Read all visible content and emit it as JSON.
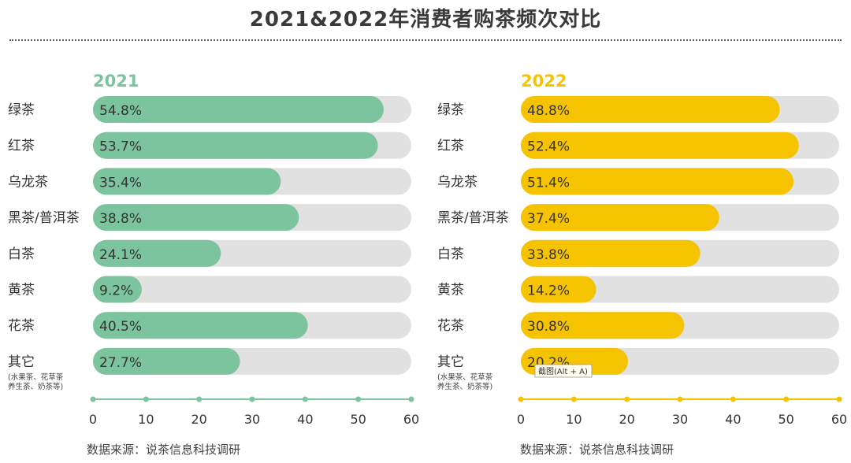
{
  "title": "2021&2022年消费者购茶频次对比",
  "source_text": "数据来源：说茶信息科技调研",
  "tooltip": "截图(Alt + A)",
  "colors": {
    "panel_2021": "#7cc49e",
    "panel_2022": "#f6c300",
    "track": "#e1e1e1"
  },
  "chart_data": [
    {
      "type": "bar",
      "orientation": "horizontal",
      "title": "2021",
      "categories": [
        "绿茶",
        "红茶",
        "乌龙茶",
        "黑茶/普洱茶",
        "白茶",
        "黄茶",
        "花茶",
        "其它"
      ],
      "category_notes": {
        "其它": [
          "(水果茶、花草茶",
          "养生茶、奶茶等)"
        ]
      },
      "values": [
        54.8,
        53.7,
        35.4,
        38.8,
        24.1,
        9.2,
        40.5,
        27.7
      ],
      "labels": [
        "54.8%",
        "53.7%",
        "35.4%",
        "38.8%",
        "24.1%",
        "9.2%",
        "40.5%",
        "27.7%"
      ],
      "xlim": [
        0,
        60
      ],
      "xticks": [
        0,
        10,
        20,
        30,
        40,
        50,
        60
      ],
      "color": "#7cc49e"
    },
    {
      "type": "bar",
      "orientation": "horizontal",
      "title": "2022",
      "categories": [
        "绿茶",
        "红茶",
        "乌龙茶",
        "黑茶/普洱茶",
        "白茶",
        "黄茶",
        "花茶",
        "其它"
      ],
      "category_notes": {
        "其它": [
          "(水果茶、花草茶",
          "养生茶、奶茶等)"
        ]
      },
      "values": [
        48.8,
        52.4,
        51.4,
        37.4,
        33.8,
        14.2,
        30.8,
        20.2
      ],
      "labels": [
        "48.8%",
        "52.4%",
        "51.4%",
        "37.4%",
        "33.8%",
        "14.2%",
        "30.8%",
        "20.2%"
      ],
      "xlim": [
        0,
        60
      ],
      "xticks": [
        0,
        10,
        20,
        30,
        40,
        50,
        60
      ],
      "color": "#f6c300"
    }
  ]
}
